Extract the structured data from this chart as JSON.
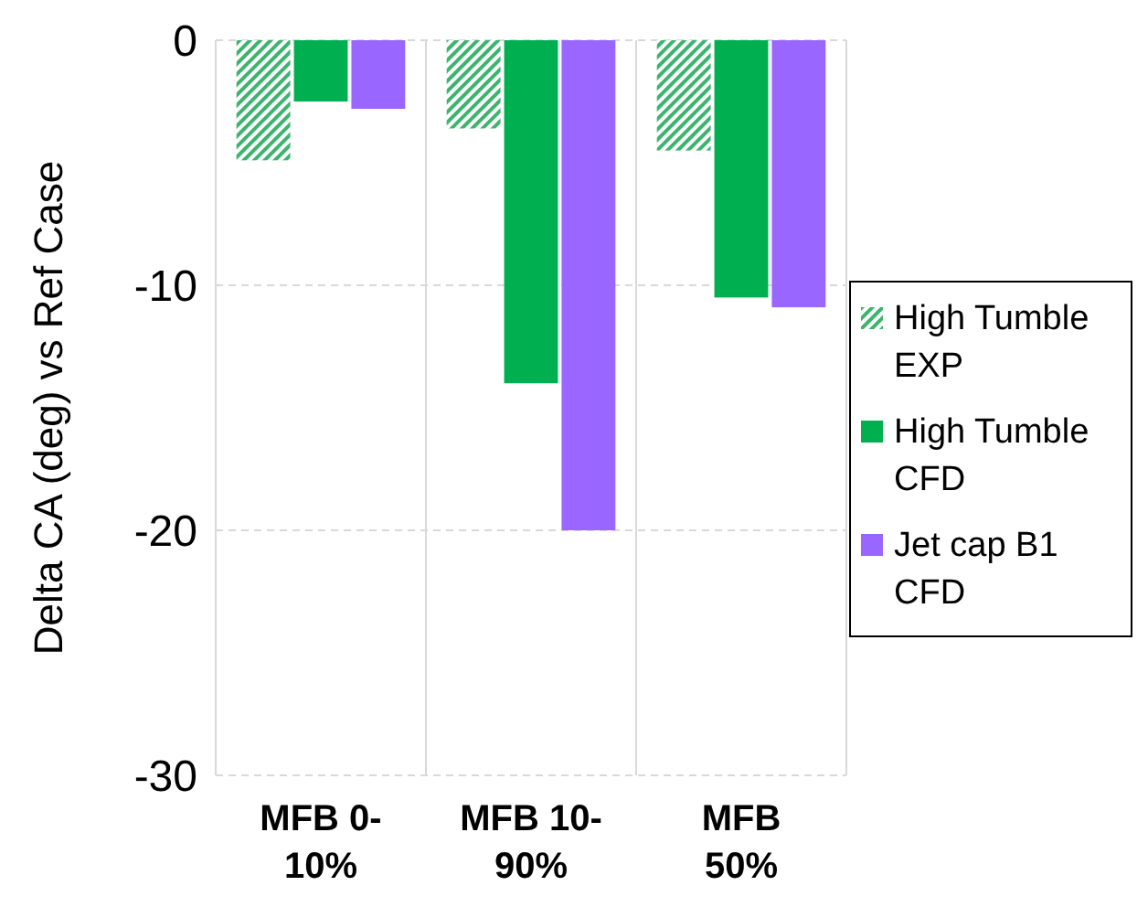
{
  "chart_data": {
    "type": "bar",
    "ylabel": "Delta CA (deg) vs Ref Case",
    "categories": [
      "MFB 0-10%",
      "MFB 10-90%",
      "MFB 50%"
    ],
    "series": [
      {
        "name": "High Tumble EXP",
        "color": "#3cb46e",
        "values": [
          -4.9,
          -3.6,
          -4.5
        ]
      },
      {
        "name": "High Tumble CFD",
        "color": "#00b050",
        "values": [
          -2.5,
          -14.0,
          -10.5
        ]
      },
      {
        "name": "Jet cap B1 CFD",
        "color": "#9966ff",
        "values": [
          -2.8,
          -20.0,
          -10.9
        ]
      }
    ],
    "ylim": [
      -30,
      0
    ],
    "yticks": [
      -30,
      -20,
      -10,
      0
    ],
    "grid": "y",
    "legend": "right"
  }
}
